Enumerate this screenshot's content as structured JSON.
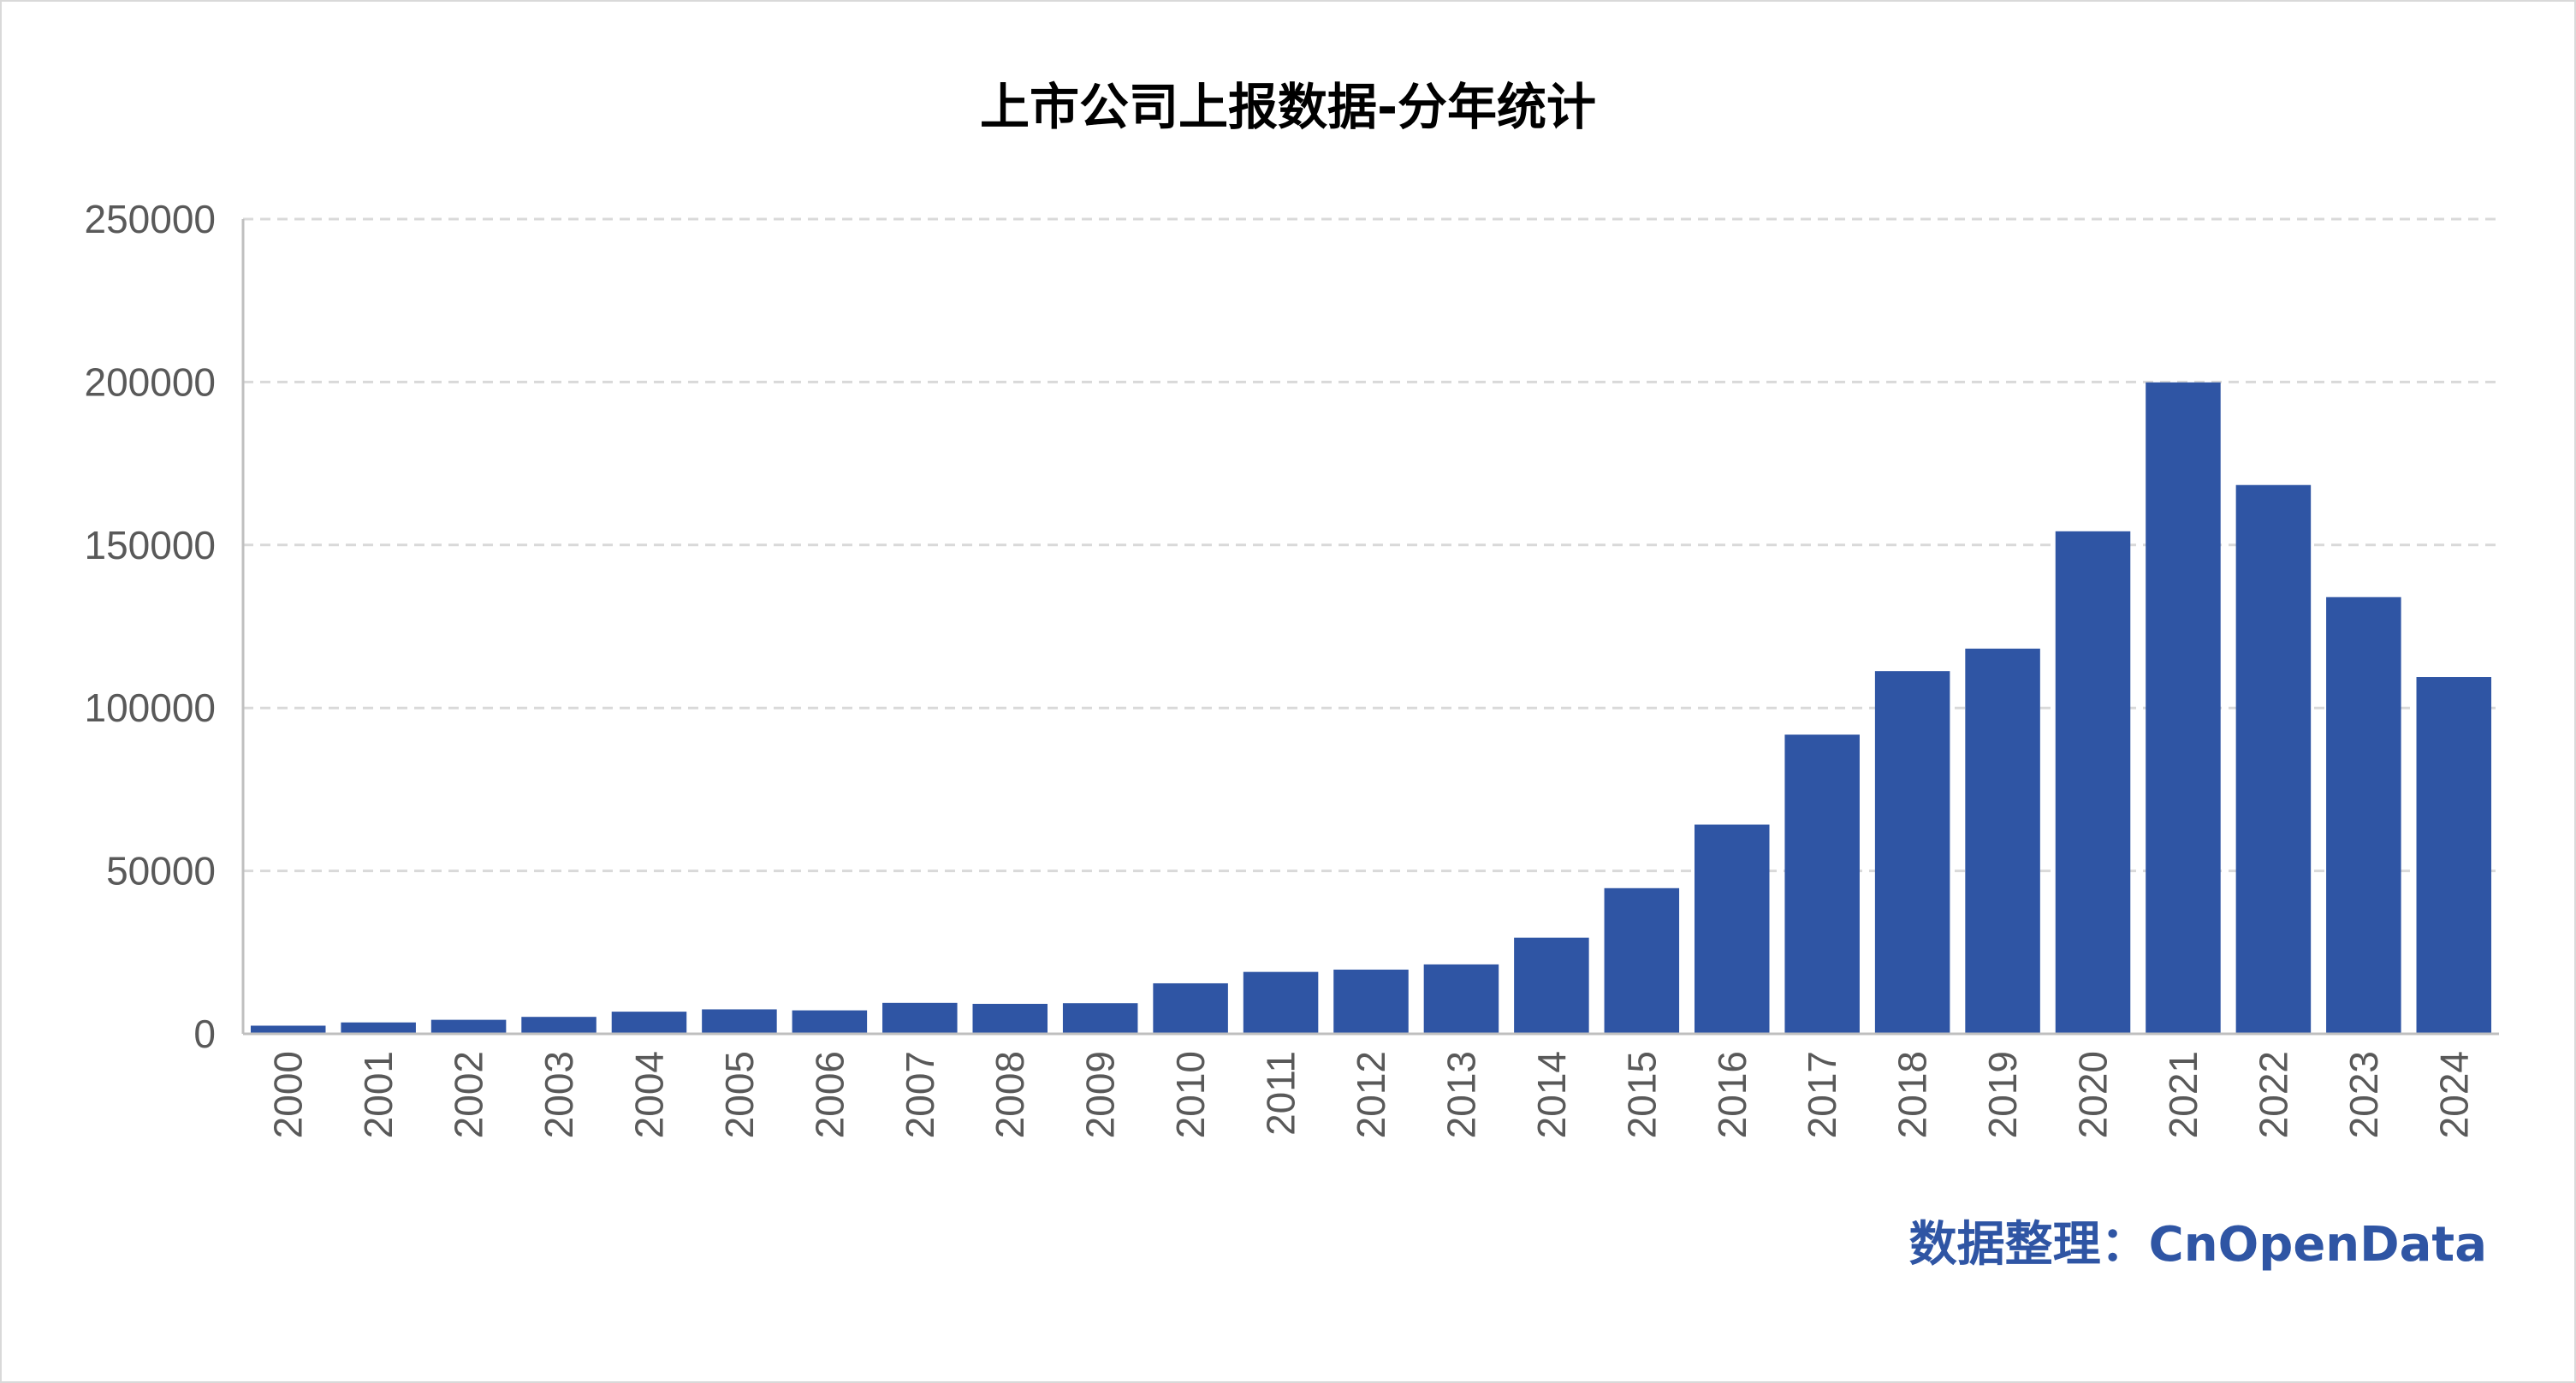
{
  "chart_data": {
    "type": "bar",
    "title": "上市公司上报数据-分年统计",
    "xlabel": "",
    "ylabel": "",
    "ylim": [
      0,
      250000
    ],
    "yticks": [
      0,
      50000,
      100000,
      150000,
      200000,
      250000
    ],
    "ytick_labels": [
      "0",
      "50000",
      "100000",
      "150000",
      "200000",
      "250000"
    ],
    "categories": [
      "2000",
      "2001",
      "2002",
      "2003",
      "2004",
      "2005",
      "2006",
      "2007",
      "2008",
      "2009",
      "2010",
      "2011",
      "2012",
      "2013",
      "2014",
      "2015",
      "2016",
      "2017",
      "2018",
      "2019",
      "2020",
      "2021",
      "2022",
      "2023",
      "2024"
    ],
    "values": [
      2500,
      3500,
      4300,
      5200,
      6800,
      7500,
      7200,
      9500,
      9200,
      9400,
      15500,
      19000,
      19700,
      21300,
      29500,
      44700,
      64200,
      91800,
      111300,
      118200,
      154200,
      199900,
      168400,
      134000,
      109500
    ],
    "bar_color": "#2f55a4",
    "grid": "horizontal-dashed",
    "legend": "none",
    "x_tick_rotation": "vertical",
    "source_note": "数据整理：CnOpenData",
    "source_color": "#2f55a4"
  }
}
